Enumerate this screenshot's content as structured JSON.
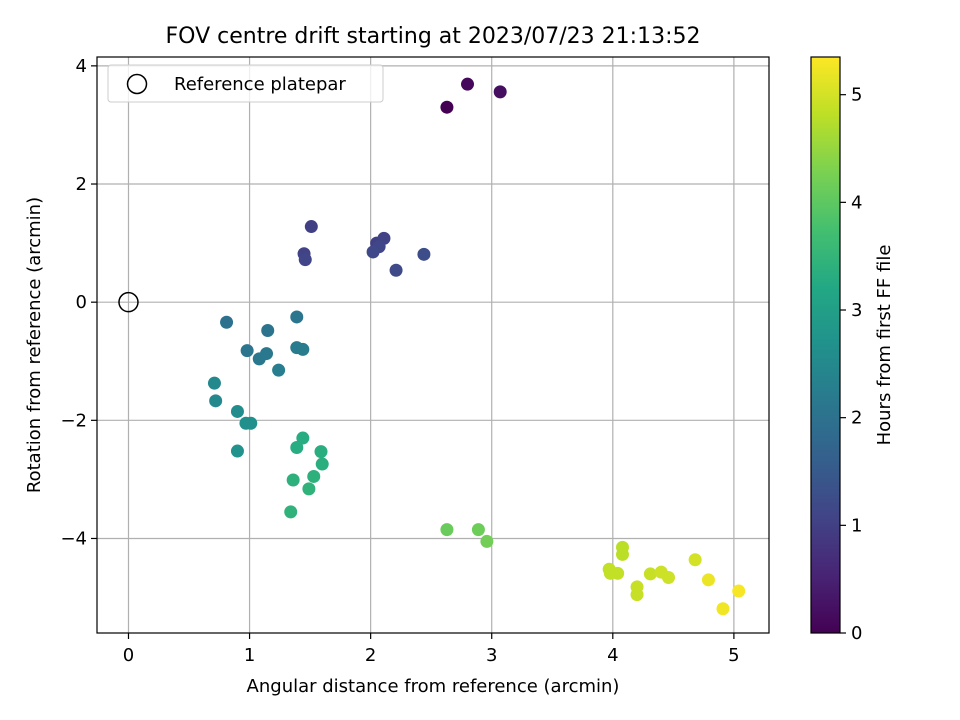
{
  "chart_data": {
    "type": "scatter",
    "title": "FOV centre drift starting at 2023/07/23 21:13:52",
    "xlabel": "Angular distance from reference (arcmin)",
    "ylabel": "Rotation from reference (arcmin)",
    "xlim": [
      -0.26,
      5.29
    ],
    "ylim": [
      -5.6,
      4.15
    ],
    "xticks": [
      0,
      1,
      2,
      3,
      4,
      5
    ],
    "xtick_labels": [
      "0",
      "1",
      "2",
      "3",
      "4",
      "5"
    ],
    "yticks": [
      4,
      2,
      0,
      -2,
      -4
    ],
    "ytick_labels": [
      "4",
      "2",
      "0",
      "−2",
      "−4"
    ],
    "grid": true,
    "legend": {
      "placement": "top-left",
      "entries": [
        {
          "label": "Reference platepar",
          "marker": "open-circle",
          "color": "#000000"
        }
      ]
    },
    "reference_point": {
      "x": 0,
      "y": 0
    },
    "colorbar": {
      "label": "Hours from first FF file",
      "colormap": "viridis",
      "range": [
        0,
        5.35
      ],
      "ticks": [
        0,
        1,
        2,
        3,
        4,
        5
      ],
      "tick_labels": [
        "0",
        "1",
        "2",
        "3",
        "4",
        "5"
      ]
    },
    "points": [
      {
        "x": 2.63,
        "y": 3.3,
        "c": 0.0
      },
      {
        "x": 2.8,
        "y": 3.69,
        "c": 0.1
      },
      {
        "x": 3.07,
        "y": 3.56,
        "c": 0.2
      },
      {
        "x": 1.51,
        "y": 1.28,
        "c": 1.0
      },
      {
        "x": 1.45,
        "y": 0.82,
        "c": 1.05
      },
      {
        "x": 1.46,
        "y": 0.72,
        "c": 1.1
      },
      {
        "x": 2.05,
        "y": 1.0,
        "c": 1.0
      },
      {
        "x": 2.11,
        "y": 1.08,
        "c": 1.05
      },
      {
        "x": 2.07,
        "y": 0.94,
        "c": 1.1
      },
      {
        "x": 2.02,
        "y": 0.85,
        "c": 1.15
      },
      {
        "x": 2.21,
        "y": 0.54,
        "c": 1.2
      },
      {
        "x": 2.44,
        "y": 0.81,
        "c": 1.25
      },
      {
        "x": 0.81,
        "y": -0.34,
        "c": 2.0
      },
      {
        "x": 1.15,
        "y": -0.48,
        "c": 2.05
      },
      {
        "x": 1.39,
        "y": -0.25,
        "c": 2.1
      },
      {
        "x": 0.98,
        "y": -0.82,
        "c": 2.1
      },
      {
        "x": 1.08,
        "y": -0.96,
        "c": 2.15
      },
      {
        "x": 1.14,
        "y": -0.87,
        "c": 2.15
      },
      {
        "x": 1.39,
        "y": -0.77,
        "c": 2.2
      },
      {
        "x": 1.44,
        "y": -0.8,
        "c": 2.2
      },
      {
        "x": 1.24,
        "y": -1.15,
        "c": 2.25
      },
      {
        "x": 0.71,
        "y": -1.37,
        "c": 2.5
      },
      {
        "x": 0.72,
        "y": -1.67,
        "c": 2.5
      },
      {
        "x": 0.9,
        "y": -1.85,
        "c": 2.6
      },
      {
        "x": 0.97,
        "y": -2.05,
        "c": 2.65
      },
      {
        "x": 1.01,
        "y": -2.05,
        "c": 2.65
      },
      {
        "x": 0.9,
        "y": -2.52,
        "c": 2.7
      },
      {
        "x": 1.44,
        "y": -2.3,
        "c": 3.3
      },
      {
        "x": 1.39,
        "y": -2.46,
        "c": 3.3
      },
      {
        "x": 1.59,
        "y": -2.53,
        "c": 3.35
      },
      {
        "x": 1.6,
        "y": -2.74,
        "c": 3.35
      },
      {
        "x": 1.53,
        "y": -2.95,
        "c": 3.4
      },
      {
        "x": 1.36,
        "y": -3.01,
        "c": 3.4
      },
      {
        "x": 1.49,
        "y": -3.16,
        "c": 3.45
      },
      {
        "x": 1.34,
        "y": -3.55,
        "c": 3.45
      },
      {
        "x": 2.63,
        "y": -3.85,
        "c": 4.1
      },
      {
        "x": 2.89,
        "y": -3.85,
        "c": 4.15
      },
      {
        "x": 2.96,
        "y": -4.05,
        "c": 4.2
      },
      {
        "x": 4.08,
        "y": -4.15,
        "c": 4.8
      },
      {
        "x": 4.08,
        "y": -4.27,
        "c": 4.8
      },
      {
        "x": 3.97,
        "y": -4.52,
        "c": 4.85
      },
      {
        "x": 3.98,
        "y": -4.59,
        "c": 4.85
      },
      {
        "x": 4.04,
        "y": -4.59,
        "c": 4.85
      },
      {
        "x": 4.2,
        "y": -4.82,
        "c": 4.9
      },
      {
        "x": 4.2,
        "y": -4.95,
        "c": 4.9
      },
      {
        "x": 4.31,
        "y": -4.6,
        "c": 4.9
      },
      {
        "x": 4.4,
        "y": -4.57,
        "c": 4.95
      },
      {
        "x": 4.46,
        "y": -4.66,
        "c": 4.95
      },
      {
        "x": 4.68,
        "y": -4.36,
        "c": 5.0
      },
      {
        "x": 4.79,
        "y": -4.7,
        "c": 5.2
      },
      {
        "x": 4.91,
        "y": -5.19,
        "c": 5.25
      },
      {
        "x": 5.04,
        "y": -4.89,
        "c": 5.3
      }
    ]
  }
}
